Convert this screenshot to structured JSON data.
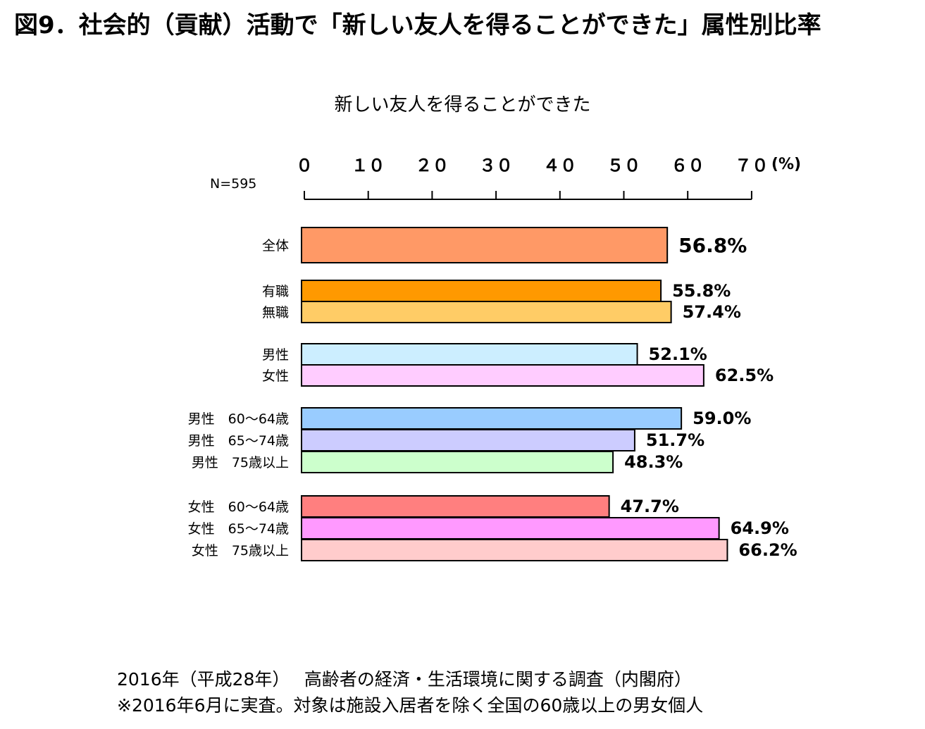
{
  "title": "図9．社会的（貢献）活動で「新しい友人を得ることができた」属性別比率",
  "n_label": "N=595",
  "footer": {
    "line1": "2016年（平成28年）　 高齢者の経済・生活環境に関する調査（内閣府）",
    "line2": "※2016年6月に実査。対象は施設入居者を除く全国の60歳以上の男女個人"
  },
  "chart_data": {
    "type": "bar",
    "orientation": "horizontal",
    "title": "新しい友人を得ることができた",
    "xlim": [
      0,
      70
    ],
    "ticks": [
      0,
      10,
      20,
      30,
      40,
      50,
      60,
      70
    ],
    "tick_labels": [
      "０",
      "１０",
      "２０",
      "３０",
      "４０",
      "５０",
      "６０",
      "７０"
    ],
    "unit_label": "(%)",
    "grid": false,
    "groups": [
      {
        "bars": [
          {
            "label": "全体",
            "value": 56.8,
            "value_label": "56.8%",
            "color": "#FF9966"
          }
        ]
      },
      {
        "bars": [
          {
            "label": "有職",
            "value": 55.8,
            "value_label": "55.8%",
            "color": "#FF9900"
          },
          {
            "label": "無職",
            "value": 57.4,
            "value_label": "57.4%",
            "color": "#FFCC66"
          }
        ]
      },
      {
        "bars": [
          {
            "label": "男性",
            "value": 52.1,
            "value_label": "52.1%",
            "color": "#CCEEFF"
          },
          {
            "label": "女性",
            "value": 62.5,
            "value_label": "62.5%",
            "color": "#FFCCFF"
          }
        ]
      },
      {
        "bars": [
          {
            "label": "男性　60～64歳",
            "value": 59.0,
            "value_label": "59.0%",
            "color": "#99CCFF"
          },
          {
            "label": "男性　65～74歳",
            "value": 51.7,
            "value_label": "51.7%",
            "color": "#CCCCFF"
          },
          {
            "label": "男性　75歳以上",
            "value": 48.3,
            "value_label": "48.3%",
            "color": "#CCFFCC"
          }
        ]
      },
      {
        "bars": [
          {
            "label": "女性　60～64歳",
            "value": 47.7,
            "value_label": "47.7%",
            "color": "#FF7F7F"
          },
          {
            "label": "女性　65～74歳",
            "value": 64.9,
            "value_label": "64.9%",
            "color": "#FF99FF"
          },
          {
            "label": "女性　75歳以上",
            "value": 66.2,
            "value_label": "66.2%",
            "color": "#FFCCCC"
          }
        ]
      }
    ]
  }
}
